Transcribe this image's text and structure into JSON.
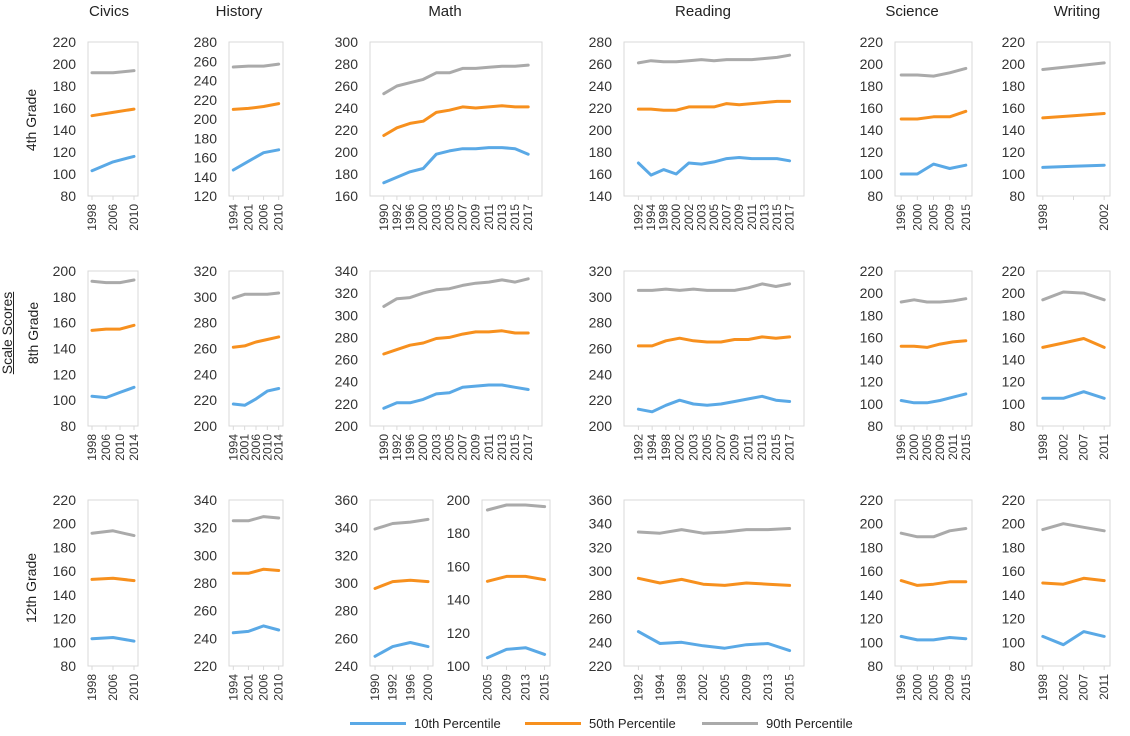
{
  "subjects": [
    "Civics",
    "History",
    "Math",
    "Reading",
    "Science",
    "Writing"
  ],
  "row_labels": [
    "4th Grade",
    "8th Grade",
    "12th Grade"
  ],
  "scale_label": "Scale Scores",
  "legend": [
    {
      "name": "10th Percentile",
      "color": "#5aa9e6"
    },
    {
      "name": "50th Percentile",
      "color": "#f7901e"
    },
    {
      "name": "90th Percentile",
      "color": "#aaaaaa"
    }
  ],
  "chart_data": [
    {
      "type": "line",
      "subject": "Civics",
      "grade": "4th Grade",
      "ylim": [
        80,
        220
      ],
      "yticks": [
        80,
        100,
        120,
        140,
        160,
        180,
        200,
        220
      ],
      "categories": [
        "1998",
        "2006",
        "2010"
      ],
      "series": [
        {
          "name": "10th Percentile",
          "values": [
            103,
            111,
            116
          ]
        },
        {
          "name": "50th Percentile",
          "values": [
            153,
            156,
            159
          ]
        },
        {
          "name": "90th Percentile",
          "values": [
            192,
            192,
            194
          ]
        }
      ]
    },
    {
      "type": "line",
      "subject": "History",
      "grade": "4th Grade",
      "ylim": [
        120,
        280
      ],
      "yticks": [
        120,
        140,
        160,
        180,
        200,
        220,
        240,
        260,
        280
      ],
      "categories": [
        "1994",
        "2001",
        "2006",
        "2010"
      ],
      "series": [
        {
          "name": "10th Percentile",
          "values": [
            147,
            156,
            165,
            168
          ]
        },
        {
          "name": "50th Percentile",
          "values": [
            210,
            211,
            213,
            216
          ]
        },
        {
          "name": "90th Percentile",
          "values": [
            254,
            255,
            255,
            257
          ]
        }
      ]
    },
    {
      "type": "line",
      "subject": "Math",
      "grade": "4th Grade",
      "ylim": [
        160,
        300
      ],
      "yticks": [
        160,
        180,
        200,
        220,
        240,
        260,
        280,
        300
      ],
      "categories": [
        "1990",
        "1992",
        "1996",
        "2000",
        "2003",
        "2005",
        "2007",
        "2009",
        "2011",
        "2013",
        "2015",
        "2017"
      ],
      "series": [
        {
          "name": "10th Percentile",
          "values": [
            172,
            177,
            182,
            185,
            198,
            201,
            203,
            203,
            204,
            204,
            203,
            198
          ]
        },
        {
          "name": "50th Percentile",
          "values": [
            215,
            222,
            226,
            228,
            236,
            238,
            241,
            240,
            241,
            242,
            241,
            241
          ]
        },
        {
          "name": "90th Percentile",
          "values": [
            253,
            260,
            263,
            266,
            272,
            272,
            276,
            276,
            277,
            278,
            278,
            279
          ]
        }
      ]
    },
    {
      "type": "line",
      "subject": "Reading",
      "grade": "4th Grade",
      "ylim": [
        140,
        280
      ],
      "yticks": [
        140,
        160,
        180,
        200,
        220,
        240,
        260,
        280
      ],
      "categories": [
        "1992",
        "1994",
        "1998",
        "2000",
        "2002",
        "2003",
        "2005",
        "2007",
        "2009",
        "2011",
        "2013",
        "2015",
        "2017"
      ],
      "series": [
        {
          "name": "10th Percentile",
          "values": [
            170,
            159,
            164,
            160,
            170,
            169,
            171,
            174,
            175,
            174,
            174,
            174,
            172
          ]
        },
        {
          "name": "50th Percentile",
          "values": [
            219,
            219,
            218,
            218,
            221,
            221,
            221,
            224,
            223,
            224,
            225,
            226,
            226
          ]
        },
        {
          "name": "90th Percentile",
          "values": [
            261,
            263,
            262,
            262,
            263,
            264,
            263,
            264,
            264,
            264,
            265,
            266,
            268
          ]
        }
      ]
    },
    {
      "type": "line",
      "subject": "Science",
      "grade": "4th Grade",
      "ylim": [
        80,
        220
      ],
      "yticks": [
        80,
        100,
        120,
        140,
        160,
        180,
        200,
        220
      ],
      "categories": [
        "1996",
        "2000",
        "2005",
        "2009",
        "2015"
      ],
      "series": [
        {
          "name": "10th Percentile",
          "values": [
            100,
            100,
            109,
            105,
            108
          ]
        },
        {
          "name": "50th Percentile",
          "values": [
            150,
            150,
            152,
            152,
            157
          ]
        },
        {
          "name": "90th Percentile",
          "values": [
            190,
            190,
            189,
            192,
            196
          ]
        }
      ]
    },
    {
      "type": "line",
      "subject": "Writing",
      "grade": "4th Grade",
      "ylim": [
        80,
        220
      ],
      "yticks": [
        80,
        100,
        120,
        140,
        160,
        180,
        200,
        220
      ],
      "categories": [
        "1998",
        "",
        "2002"
      ],
      "series": [
        {
          "name": "10th Percentile",
          "values": [
            106,
            107,
            108
          ]
        },
        {
          "name": "50th Percentile",
          "values": [
            151,
            153,
            155
          ]
        },
        {
          "name": "90th Percentile",
          "values": [
            195,
            198,
            201
          ]
        }
      ]
    },
    {
      "type": "line",
      "subject": "Civics",
      "grade": "8th Grade",
      "ylim": [
        80,
        200
      ],
      "yticks": [
        80,
        100,
        120,
        140,
        160,
        180,
        200
      ],
      "categories": [
        "1998",
        "2006",
        "2010",
        "2014"
      ],
      "series": [
        {
          "name": "10th Percentile",
          "values": [
            103,
            102,
            106,
            110
          ]
        },
        {
          "name": "50th Percentile",
          "values": [
            154,
            155,
            155,
            158
          ]
        },
        {
          "name": "90th Percentile",
          "values": [
            192,
            191,
            191,
            193
          ]
        }
      ]
    },
    {
      "type": "line",
      "subject": "History",
      "grade": "8th Grade",
      "ylim": [
        200,
        320
      ],
      "yticks": [
        200,
        220,
        240,
        260,
        280,
        300,
        320
      ],
      "categories": [
        "1994",
        "2001",
        "2006",
        "2010",
        "2014"
      ],
      "series": [
        {
          "name": "10th Percentile",
          "values": [
            217,
            216,
            221,
            227,
            229
          ]
        },
        {
          "name": "50th Percentile",
          "values": [
            261,
            262,
            265,
            267,
            269
          ]
        },
        {
          "name": "90th Percentile",
          "values": [
            299,
            302,
            302,
            302,
            303
          ]
        }
      ]
    },
    {
      "type": "line",
      "subject": "Math",
      "grade": "8th Grade",
      "ylim": [
        200,
        340
      ],
      "yticks": [
        200,
        220,
        240,
        260,
        280,
        300,
        320,
        340
      ],
      "categories": [
        "1990",
        "1992",
        "1996",
        "2000",
        "2003",
        "2005",
        "2007",
        "2009",
        "2011",
        "2013",
        "2015",
        "2017"
      ],
      "series": [
        {
          "name": "10th Percentile",
          "values": [
            216,
            221,
            221,
            224,
            229,
            230,
            235,
            236,
            237,
            237,
            235,
            233
          ]
        },
        {
          "name": "50th Percentile",
          "values": [
            265,
            269,
            273,
            275,
            279,
            280,
            283,
            285,
            285,
            286,
            284,
            284
          ]
        },
        {
          "name": "90th Percentile",
          "values": [
            308,
            315,
            316,
            320,
            323,
            324,
            327,
            329,
            330,
            332,
            330,
            333
          ]
        }
      ]
    },
    {
      "type": "line",
      "subject": "Reading",
      "grade": "8th Grade",
      "ylim": [
        200,
        320
      ],
      "yticks": [
        200,
        220,
        240,
        260,
        280,
        300,
        320
      ],
      "categories": [
        "1992",
        "1994",
        "1998",
        "2002",
        "2003",
        "2005",
        "2007",
        "2009",
        "2011",
        "2013",
        "2015",
        "2017"
      ],
      "series": [
        {
          "name": "10th Percentile",
          "values": [
            213,
            211,
            216,
            220,
            217,
            216,
            217,
            219,
            221,
            223,
            220,
            219
          ]
        },
        {
          "name": "50th Percentile",
          "values": [
            262,
            262,
            266,
            268,
            266,
            265,
            265,
            267,
            267,
            269,
            268,
            269
          ]
        },
        {
          "name": "90th Percentile",
          "values": [
            305,
            305,
            306,
            305,
            306,
            305,
            305,
            305,
            307,
            310,
            308,
            310
          ]
        }
      ]
    },
    {
      "type": "line",
      "subject": "Science",
      "grade": "8th Grade",
      "ylim": [
        80,
        220
      ],
      "yticks": [
        80,
        100,
        120,
        140,
        160,
        180,
        200,
        220
      ],
      "categories": [
        "1996",
        "2000",
        "2005",
        "2009",
        "2011",
        "2015"
      ],
      "series": [
        {
          "name": "10th Percentile",
          "values": [
            103,
            101,
            101,
            103,
            106,
            109
          ]
        },
        {
          "name": "50th Percentile",
          "values": [
            152,
            152,
            151,
            154,
            156,
            157
          ]
        },
        {
          "name": "90th Percentile",
          "values": [
            192,
            194,
            192,
            192,
            193,
            195
          ]
        }
      ]
    },
    {
      "type": "line",
      "subject": "Writing",
      "grade": "8th Grade",
      "ylim": [
        80,
        220
      ],
      "yticks": [
        80,
        100,
        120,
        140,
        160,
        180,
        200,
        220
      ],
      "categories": [
        "1998",
        "2002",
        "2007",
        "2011"
      ],
      "series": [
        {
          "name": "10th Percentile",
          "values": [
            105,
            105,
            111,
            105
          ]
        },
        {
          "name": "50th Percentile",
          "values": [
            151,
            155,
            159,
            151
          ]
        },
        {
          "name": "90th Percentile",
          "values": [
            194,
            201,
            200,
            194
          ]
        }
      ]
    },
    {
      "type": "line",
      "subject": "Civics",
      "grade": "12th Grade",
      "ylim": [
        80,
        220
      ],
      "yticks": [
        80,
        100,
        120,
        140,
        160,
        180,
        200,
        220
      ],
      "categories": [
        "1998",
        "2006",
        "2010"
      ],
      "series": [
        {
          "name": "10th Percentile",
          "values": [
            103,
            104,
            101
          ]
        },
        {
          "name": "50th Percentile",
          "values": [
            153,
            154,
            152
          ]
        },
        {
          "name": "90th Percentile",
          "values": [
            192,
            194,
            190
          ]
        }
      ]
    },
    {
      "type": "line",
      "subject": "History",
      "grade": "12th Grade",
      "ylim": [
        220,
        340
      ],
      "yticks": [
        220,
        240,
        260,
        280,
        300,
        320,
        340
      ],
      "categories": [
        "1994",
        "2001",
        "2006",
        "2010"
      ],
      "series": [
        {
          "name": "10th Percentile",
          "values": [
            244,
            245,
            249,
            246
          ]
        },
        {
          "name": "50th Percentile",
          "values": [
            287,
            287,
            290,
            289
          ]
        },
        {
          "name": "90th Percentile",
          "values": [
            325,
            325,
            328,
            327
          ]
        }
      ]
    },
    {
      "type": "line",
      "subject": "Math",
      "grade": "12th Grade",
      "ylim": [
        240,
        360
      ],
      "yticks": [
        240,
        260,
        280,
        300,
        320,
        340,
        360
      ],
      "categories": [
        "1990",
        "1992",
        "1996",
        "2000"
      ],
      "series": [
        {
          "name": "10th Percentile",
          "values": [
            247,
            254,
            257,
            254
          ]
        },
        {
          "name": "50th Percentile",
          "values": [
            296,
            301,
            302,
            301
          ]
        },
        {
          "name": "90th Percentile",
          "values": [
            339,
            343,
            344,
            346
          ]
        }
      ]
    },
    {
      "type": "line",
      "subject": "Math",
      "grade": "12th Grade",
      "ylim": [
        100,
        200
      ],
      "yticks": [
        100,
        120,
        140,
        160,
        180,
        200
      ],
      "categories": [
        "2005",
        "2009",
        "2013",
        "2015"
      ],
      "series": [
        {
          "name": "10th Percentile",
          "values": [
            105,
            110,
            111,
            107
          ]
        },
        {
          "name": "50th Percentile",
          "values": [
            151,
            154,
            154,
            152
          ]
        },
        {
          "name": "90th Percentile",
          "values": [
            194,
            197,
            197,
            196
          ]
        }
      ]
    },
    {
      "type": "line",
      "subject": "Reading",
      "grade": "12th Grade",
      "ylim": [
        220,
        360
      ],
      "yticks": [
        220,
        240,
        260,
        280,
        300,
        320,
        340,
        360
      ],
      "categories": [
        "1992",
        "1994",
        "1998",
        "2002",
        "2005",
        "2009",
        "2013",
        "2015"
      ],
      "series": [
        {
          "name": "10th Percentile",
          "values": [
            249,
            239,
            240,
            237,
            235,
            238,
            239,
            233
          ]
        },
        {
          "name": "50th Percentile",
          "values": [
            294,
            290,
            293,
            289,
            288,
            290,
            289,
            288
          ]
        },
        {
          "name": "90th Percentile",
          "values": [
            333,
            332,
            335,
            332,
            333,
            335,
            335,
            336
          ]
        }
      ]
    },
    {
      "type": "line",
      "subject": "Science",
      "grade": "12th Grade",
      "ylim": [
        80,
        220
      ],
      "yticks": [
        80,
        100,
        120,
        140,
        160,
        180,
        200,
        220
      ],
      "categories": [
        "1996",
        "2000",
        "2005",
        "2009",
        "2015"
      ],
      "series": [
        {
          "name": "10th Percentile",
          "values": [
            105,
            102,
            102,
            104,
            103
          ]
        },
        {
          "name": "50th Percentile",
          "values": [
            152,
            148,
            149,
            151,
            151
          ]
        },
        {
          "name": "90th Percentile",
          "values": [
            192,
            189,
            189,
            194,
            196
          ]
        }
      ]
    },
    {
      "type": "line",
      "subject": "Writing",
      "grade": "12th Grade",
      "ylim": [
        80,
        220
      ],
      "yticks": [
        80,
        100,
        120,
        140,
        160,
        180,
        200,
        220
      ],
      "categories": [
        "1998",
        "2002",
        "2007",
        "2011"
      ],
      "series": [
        {
          "name": "10th Percentile",
          "values": [
            105,
            98,
            109,
            105
          ]
        },
        {
          "name": "50th Percentile",
          "values": [
            150,
            149,
            154,
            152
          ]
        },
        {
          "name": "90th Percentile",
          "values": [
            195,
            200,
            197,
            194
          ]
        }
      ]
    }
  ]
}
